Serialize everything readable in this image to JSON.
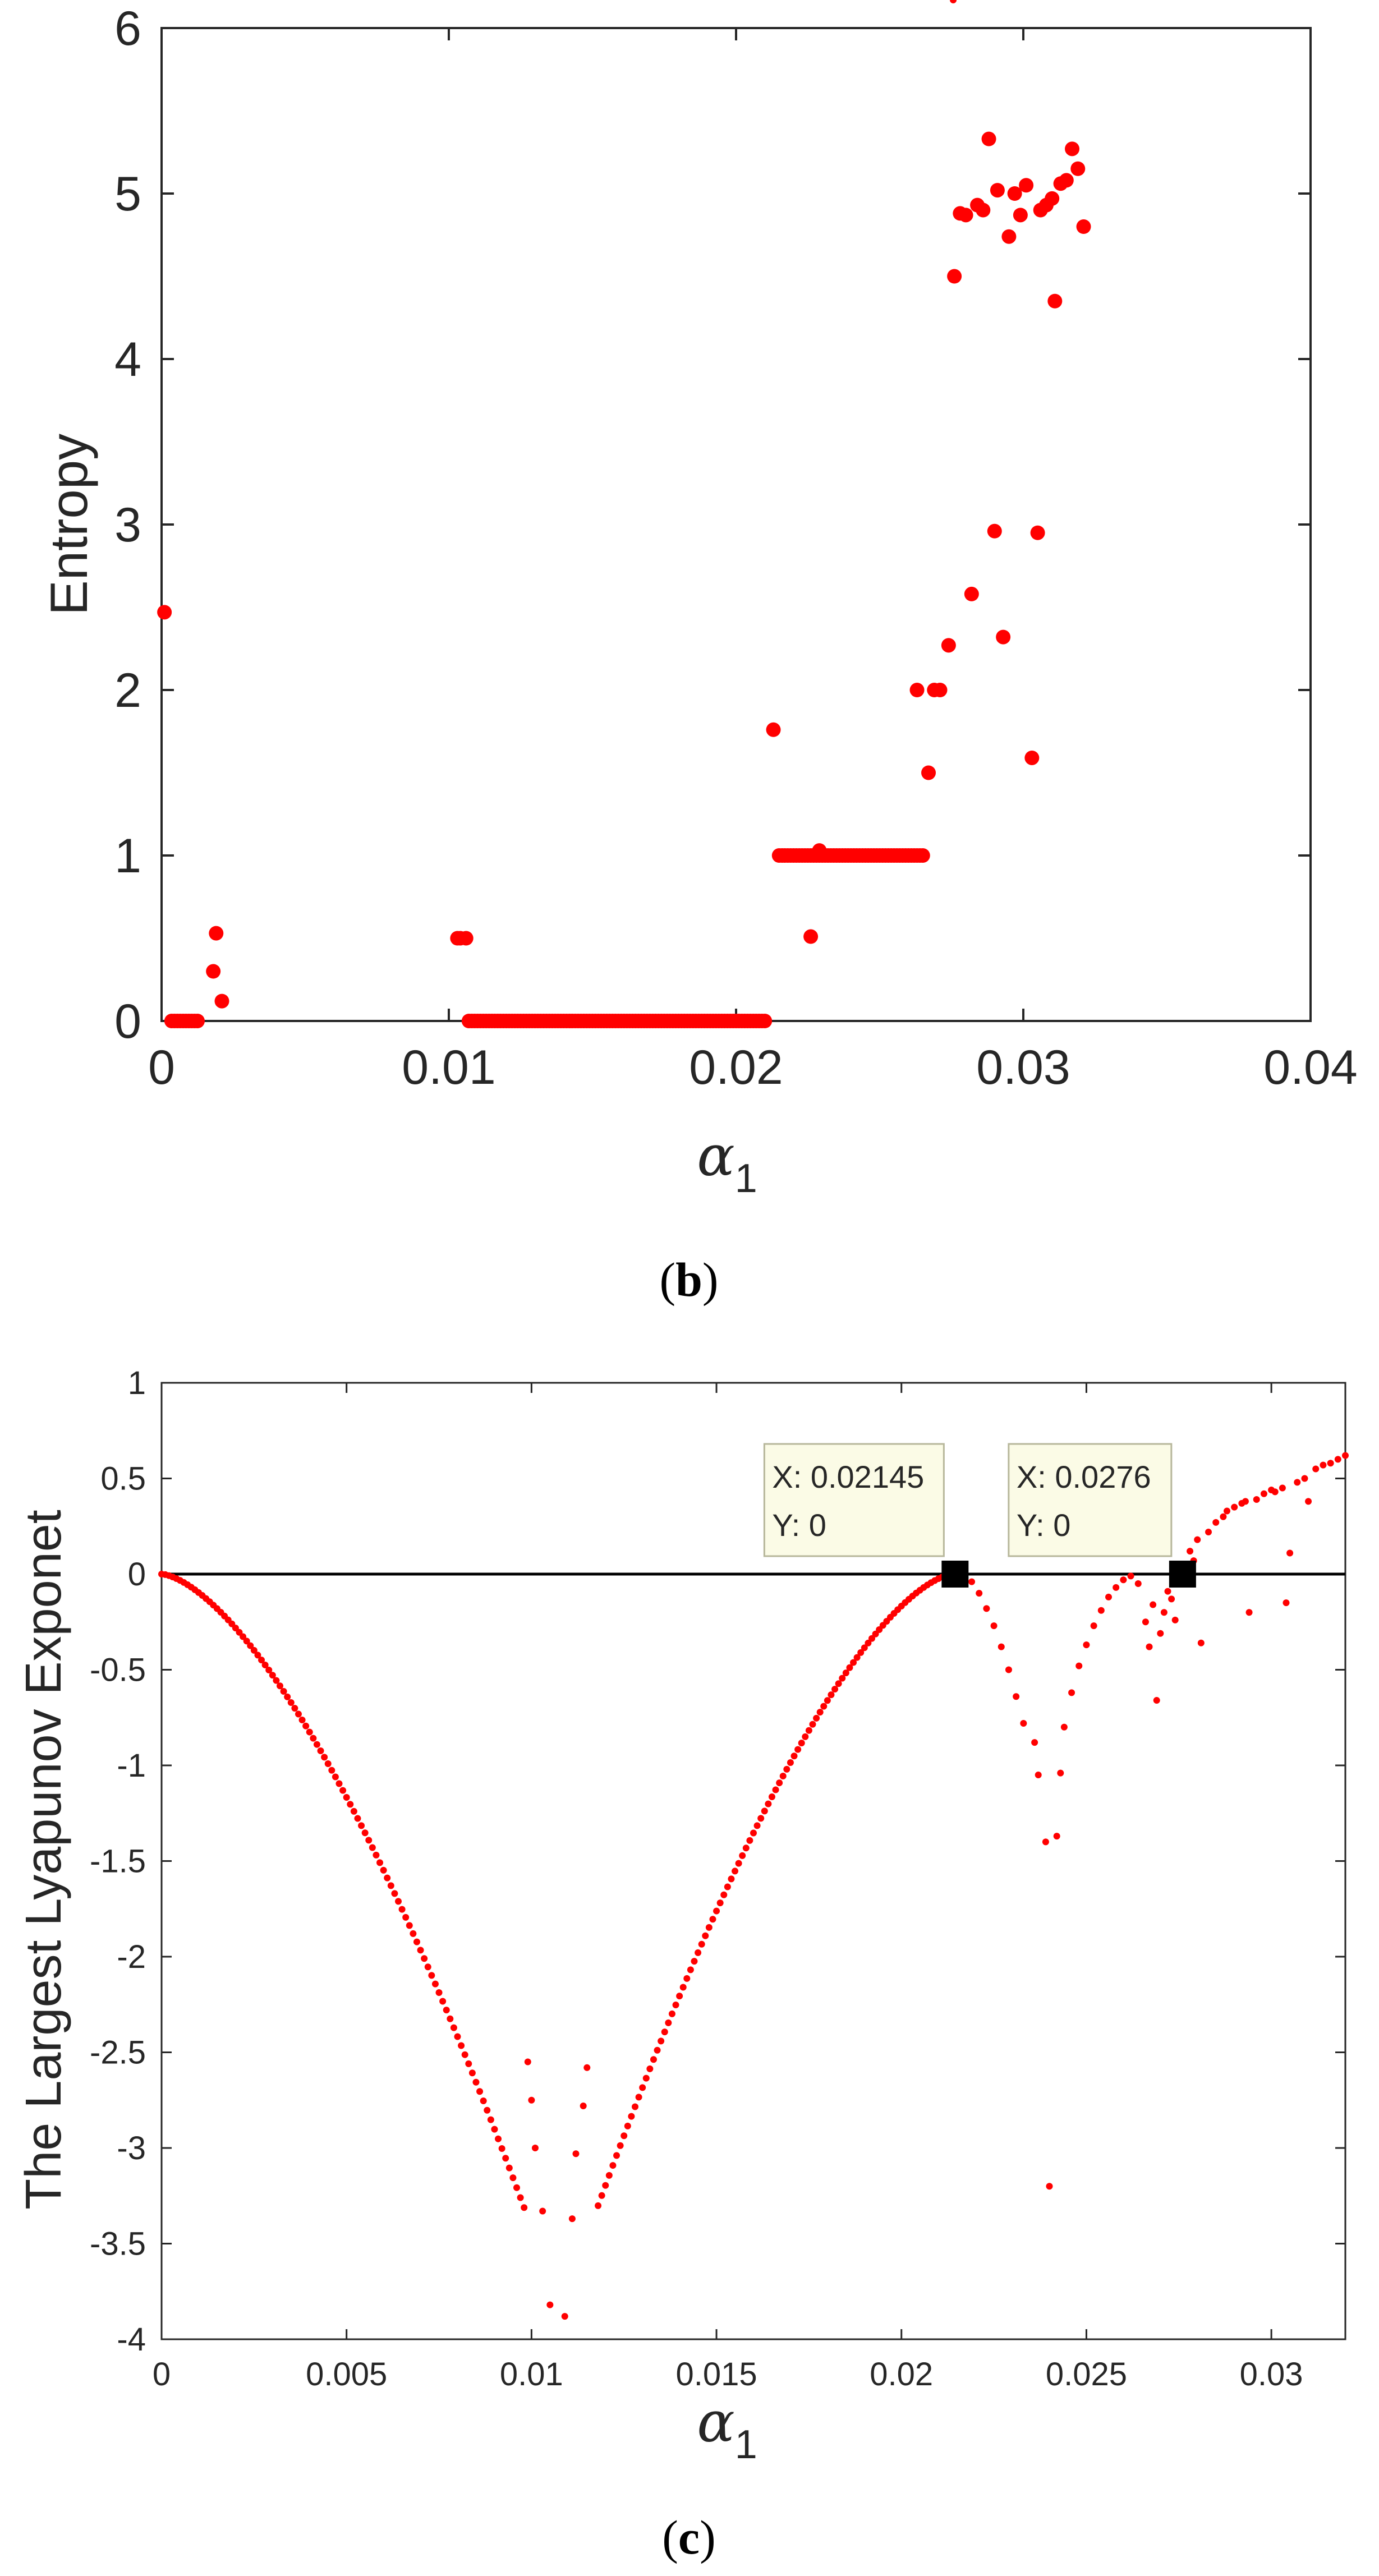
{
  "chart_data": [
    {
      "type": "scatter",
      "panel_label": "(b)",
      "panel_letter": "b",
      "xlabel": "α",
      "xlabel_subscript": "1",
      "ylabel": "Entropy",
      "xlim": [
        0,
        0.04
      ],
      "ylim": [
        0,
        6
      ],
      "xticks": [
        0,
        0.01,
        0.02,
        0.03,
        0.04
      ],
      "xtick_labels": [
        "0",
        "0.01",
        "0.02",
        "0.03",
        "0.04"
      ],
      "yticks": [
        0,
        1,
        2,
        3,
        4,
        5,
        6
      ],
      "ytick_labels": [
        "0",
        "1",
        "2",
        "3",
        "4",
        "5",
        "6"
      ],
      "marker_color": "#ff0000",
      "segments": [
        {
          "x_start": 0.00035,
          "x_end": 0.0013,
          "step": 0.0001,
          "y": 0
        },
        {
          "x_start": 0.0107,
          "x_end": 0.021,
          "step": 0.0001,
          "y": 0
        },
        {
          "x_start": 0.0215,
          "x_end": 0.0265,
          "step": 0.0001,
          "y": 1
        }
      ],
      "points": [
        [
          0.0001,
          2.47
        ],
        [
          0.0018,
          0.3
        ],
        [
          0.0019,
          0.53
        ],
        [
          0.0021,
          0.12
        ],
        [
          0.0103,
          0.5
        ],
        [
          0.0104,
          0.5
        ],
        [
          0.0106,
          0.5
        ],
        [
          0.0213,
          1.76
        ],
        [
          0.0226,
          0.51
        ],
        [
          0.0229,
          1.03
        ],
        [
          0.0263,
          2.0
        ],
        [
          0.0267,
          1.5
        ],
        [
          0.0269,
          2.0
        ],
        [
          0.0271,
          2.0
        ],
        [
          0.0274,
          2.27
        ],
        [
          0.0276,
          4.5
        ],
        [
          0.0278,
          4.88
        ],
        [
          0.028,
          4.87
        ],
        [
          0.0282,
          2.58
        ],
        [
          0.0284,
          4.93
        ],
        [
          0.0286,
          4.9
        ],
        [
          0.0288,
          5.33
        ],
        [
          0.029,
          2.96
        ],
        [
          0.0291,
          5.02
        ],
        [
          0.0293,
          2.32
        ],
        [
          0.0295,
          4.74
        ],
        [
          0.0297,
          5.0
        ],
        [
          0.0299,
          4.87
        ],
        [
          0.0301,
          5.05
        ],
        [
          0.0303,
          1.59
        ],
        [
          0.0305,
          2.95
        ],
        [
          0.0306,
          4.9
        ],
        [
          0.0308,
          4.93
        ],
        [
          0.031,
          4.97
        ],
        [
          0.0311,
          4.35
        ],
        [
          0.0313,
          5.06
        ],
        [
          0.0315,
          5.08
        ],
        [
          0.0317,
          5.27
        ],
        [
          0.0319,
          5.15
        ],
        [
          0.0321,
          4.8
        ]
      ]
    },
    {
      "type": "scatter",
      "panel_label": "(c)",
      "panel_letter": "c",
      "xlabel": "α",
      "xlabel_subscript": "1",
      "ylabel": "The Largest Lyapunov Exponet",
      "xlim": [
        0,
        0.032
      ],
      "ylim": [
        -4,
        1
      ],
      "xticks": [
        0,
        0.005,
        0.01,
        0.015,
        0.02,
        0.025,
        0.03
      ],
      "xtick_labels": [
        "0",
        "0.005",
        "0.01",
        "0.015",
        "0.02",
        "0.025",
        "0.03"
      ],
      "yticks": [
        1,
        0.5,
        0,
        -0.5,
        -1,
        -1.5,
        -2,
        -2.5,
        -3,
        -3.5,
        -4
      ],
      "ytick_labels": [
        "1",
        "0.5",
        "0",
        "-0.5",
        "-1",
        "-1.5",
        "-2",
        "-2.5",
        "-3",
        "-3.5",
        "-4"
      ],
      "marker_color": "#ff0000",
      "zero_line_color": "#000000",
      "curve_segments": [
        {
          "x_start": 0.0,
          "x_end": 0.0098,
          "peak_x": 0.0108,
          "peak_y": -3.85,
          "step": 0.0001
        },
        {
          "x_start": 0.0118,
          "x_end": 0.0214,
          "peak_x": 0.0108,
          "peak_y": -3.85,
          "step": 0.0001
        }
      ],
      "points": [
        [
          0.0099,
          -2.55
        ],
        [
          0.01,
          -2.75
        ],
        [
          0.0101,
          -3.0
        ],
        [
          0.0103,
          -3.33
        ],
        [
          0.0105,
          -3.82
        ],
        [
          0.0109,
          -3.88
        ],
        [
          0.0111,
          -3.37
        ],
        [
          0.0112,
          -3.03
        ],
        [
          0.0114,
          -2.78
        ],
        [
          0.0115,
          -2.58
        ],
        [
          0.0219,
          -0.04
        ],
        [
          0.0221,
          -0.1
        ],
        [
          0.0223,
          -0.18
        ],
        [
          0.0225,
          -0.27
        ],
        [
          0.0227,
          -0.38
        ],
        [
          0.0229,
          -0.5
        ],
        [
          0.0231,
          -0.64
        ],
        [
          0.0233,
          -0.78
        ],
        [
          0.0236,
          -0.88
        ],
        [
          0.0237,
          -1.05
        ],
        [
          0.0239,
          -1.4
        ],
        [
          0.024,
          -3.2
        ],
        [
          0.0242,
          -1.37
        ],
        [
          0.0243,
          -1.04
        ],
        [
          0.0244,
          -0.8
        ],
        [
          0.0246,
          -0.62
        ],
        [
          0.0248,
          -0.48
        ],
        [
          0.025,
          -0.37
        ],
        [
          0.0252,
          -0.27
        ],
        [
          0.0254,
          -0.19
        ],
        [
          0.0256,
          -0.12
        ],
        [
          0.0258,
          -0.07
        ],
        [
          0.026,
          -0.03
        ],
        [
          0.0262,
          -0.01
        ],
        [
          0.0264,
          -0.05
        ],
        [
          0.0266,
          -0.25
        ],
        [
          0.0267,
          -0.38
        ],
        [
          0.0268,
          -0.16
        ],
        [
          0.0269,
          -0.66
        ],
        [
          0.027,
          -0.31
        ],
        [
          0.0271,
          -0.2
        ],
        [
          0.0272,
          -0.09
        ],
        [
          0.0273,
          -0.13
        ],
        [
          0.0274,
          -0.24
        ],
        [
          0.0278,
          0.12
        ],
        [
          0.0279,
          0.07
        ],
        [
          0.028,
          0.18
        ],
        [
          0.0281,
          -0.36
        ],
        [
          0.0283,
          0.22
        ],
        [
          0.0285,
          0.27
        ],
        [
          0.0287,
          0.3
        ],
        [
          0.0288,
          0.33
        ],
        [
          0.029,
          0.35
        ],
        [
          0.0292,
          0.37
        ],
        [
          0.0293,
          0.38
        ],
        [
          0.0294,
          -0.2
        ],
        [
          0.0296,
          0.39
        ],
        [
          0.0298,
          0.42
        ],
        [
          0.03,
          0.44
        ],
        [
          0.0301,
          0.43
        ],
        [
          0.0303,
          0.45
        ],
        [
          0.0304,
          -0.15
        ],
        [
          0.0305,
          0.11
        ],
        [
          0.0307,
          0.48
        ],
        [
          0.0309,
          0.5
        ],
        [
          0.031,
          0.38
        ],
        [
          0.0312,
          0.55
        ],
        [
          0.0314,
          0.57
        ],
        [
          0.0316,
          0.58
        ],
        [
          0.0318,
          0.6
        ],
        [
          0.032,
          0.62
        ]
      ],
      "datatips": [
        {
          "x": 0.02145,
          "y": 0,
          "x_text": "X: 0.02145",
          "y_text": "Y: 0"
        },
        {
          "x": 0.0276,
          "y": 0,
          "x_text": "X: 0.0276",
          "y_text": "Y: 0"
        }
      ]
    }
  ]
}
